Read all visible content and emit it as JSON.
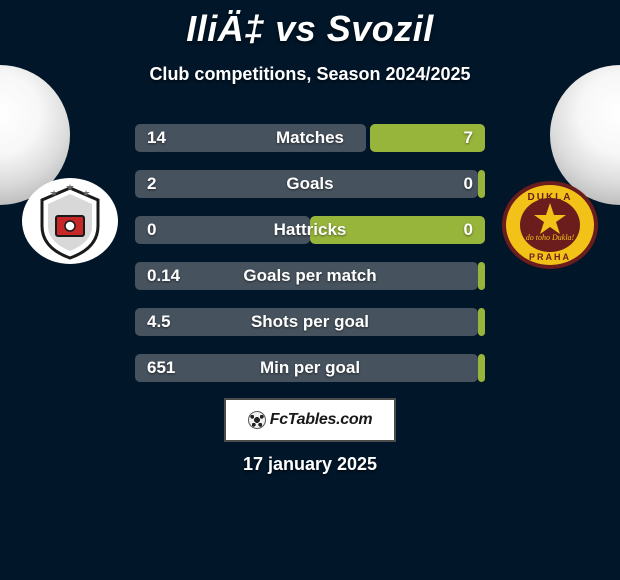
{
  "header": {
    "title": "IliÄ‡ vs Svozil",
    "subtitle": "Club competitions, Season 2024/2025"
  },
  "colors": {
    "player1_bar": "#46525d",
    "player2_bar": "#97b53b",
    "background": "#011629"
  },
  "stats": [
    {
      "label": "Matches",
      "left_val": "14",
      "right_val": "7",
      "left_pct": 66,
      "right_pct": 33
    },
    {
      "label": "Goals",
      "left_val": "2",
      "right_val": "0",
      "left_pct": 98,
      "right_pct": 2
    },
    {
      "label": "Hattricks",
      "left_val": "0",
      "right_val": "0",
      "left_pct": 50,
      "right_pct": 50
    },
    {
      "label": "Goals per match",
      "left_val": "0.14",
      "right_val": "",
      "left_pct": 98,
      "right_pct": 2
    },
    {
      "label": "Shots per goal",
      "left_val": "4.5",
      "right_val": "",
      "left_pct": 98,
      "right_pct": 2
    },
    {
      "label": "Min per goal",
      "left_val": "651",
      "right_val": "",
      "left_pct": 98,
      "right_pct": 2
    }
  ],
  "brand": {
    "name": "FcTables.com"
  },
  "date": "17 january 2025",
  "logos": {
    "left": {
      "name": "partizan-logo"
    },
    "right": {
      "name": "dukla-praha-logo"
    }
  }
}
